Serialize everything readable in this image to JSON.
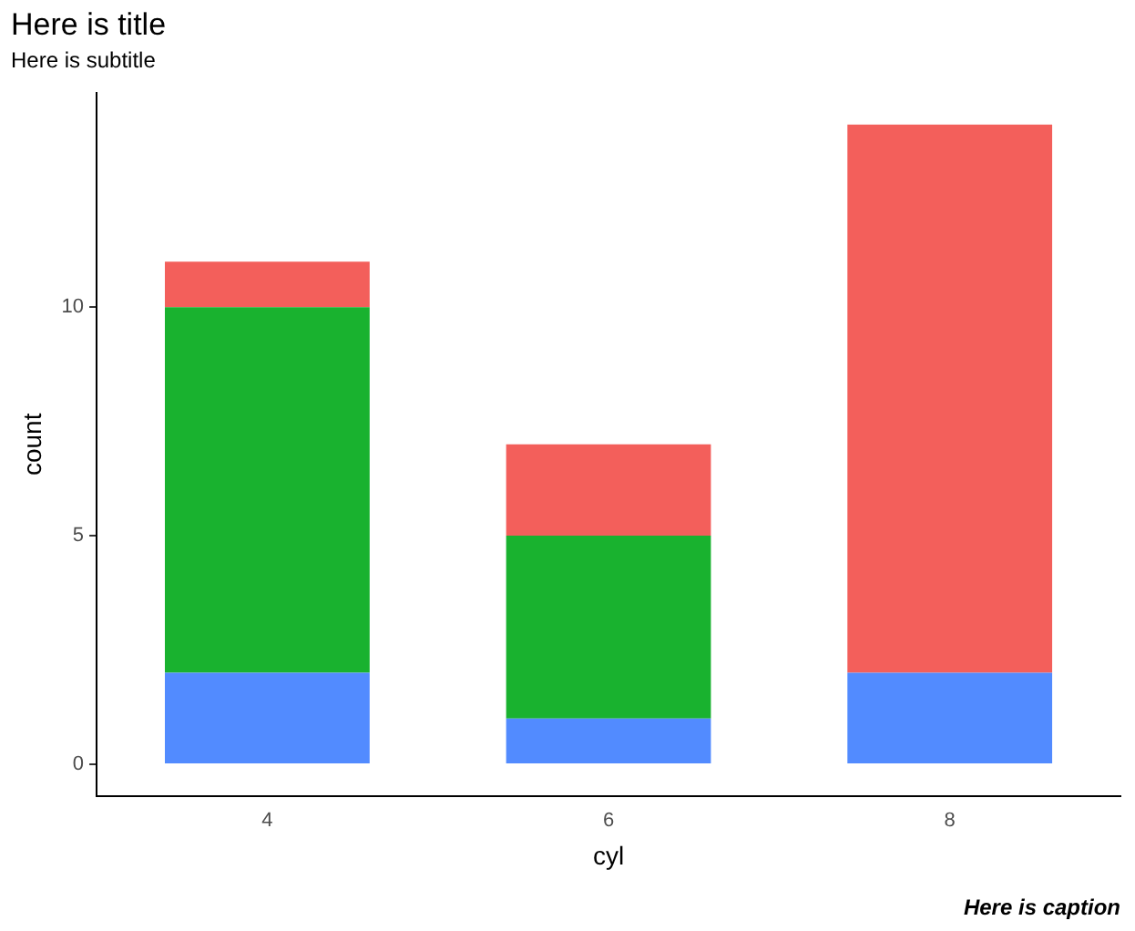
{
  "chart_data": {
    "type": "bar",
    "title": "Here is title",
    "subtitle": "Here is subtitle",
    "xlabel": "cyl",
    "ylabel": "count",
    "categories": [
      "4",
      "6",
      "8"
    ],
    "stacked": true,
    "series": [
      {
        "color": "#528bff",
        "values": [
          2,
          1,
          2
        ]
      },
      {
        "color": "#19b22f",
        "values": [
          8,
          4,
          0
        ]
      },
      {
        "color": "#f35f5b",
        "values": [
          1,
          2,
          12
        ]
      }
    ],
    "ylim": [
      -0.7,
      14.7
    ],
    "yticks": [
      0,
      5,
      10
    ],
    "grid": false,
    "legend": false,
    "annotations": [
      "Here is caption"
    ]
  }
}
